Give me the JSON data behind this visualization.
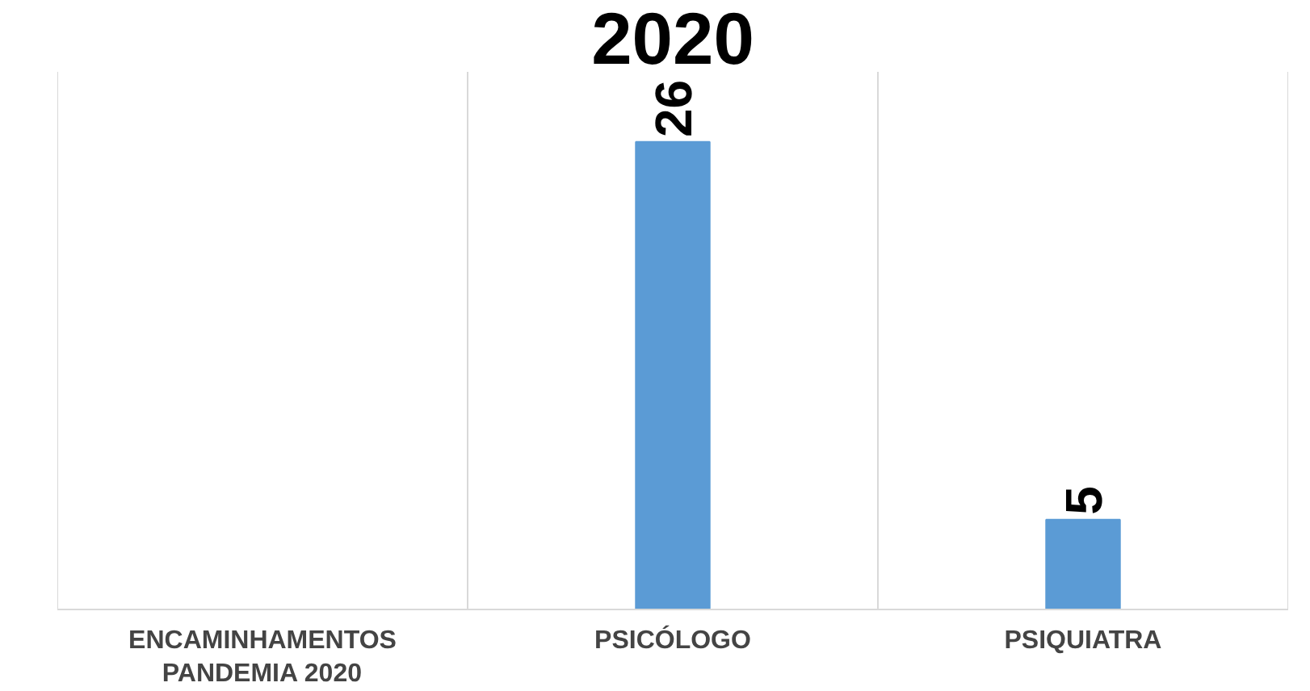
{
  "chart_data": {
    "type": "bar",
    "title": "2020",
    "categories": [
      "ENCAMINHAMENTOS PANDEMIA 2020",
      "PSICÓLOGO",
      "PSIQUIATRA"
    ],
    "values": [
      null,
      26,
      5
    ],
    "color": "#5b9bd5",
    "data_labels": true,
    "grid": "x"
  }
}
